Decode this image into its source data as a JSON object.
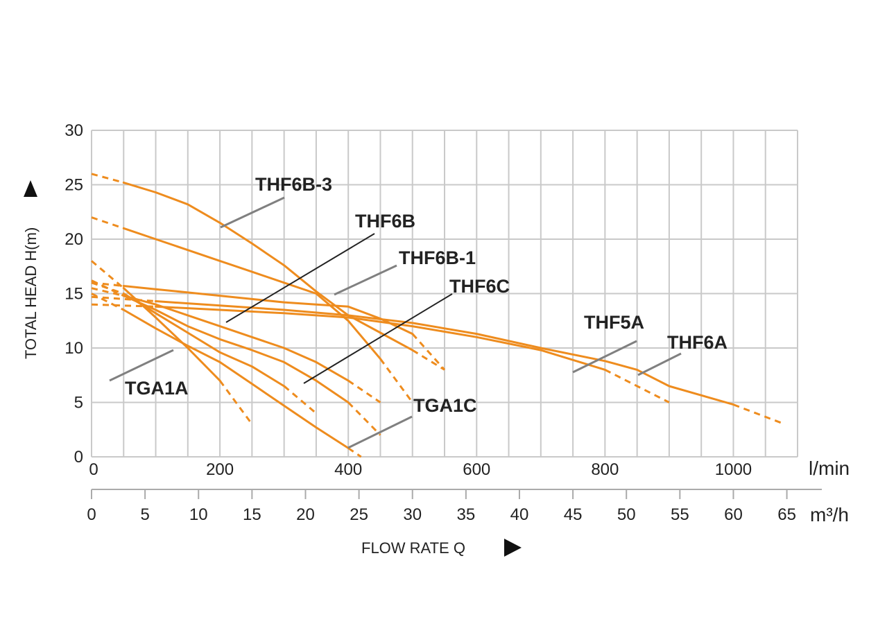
{
  "chart_data": {
    "type": "line",
    "ylabel": "TOTAL HEAD H(m)",
    "xlabel": "FLOW RATE Q",
    "ylim": [
      0,
      30
    ],
    "xlim": [
      0,
      1100
    ],
    "x_unit": "l/min",
    "x2_unit": "m³/h",
    "y_ticks": [
      0,
      5,
      10,
      15,
      20,
      25,
      30
    ],
    "x_ticks": [
      0,
      200,
      400,
      600,
      800,
      1000
    ],
    "x2_ticks": [
      0,
      5,
      10,
      15,
      20,
      25,
      30,
      35,
      40,
      45,
      50,
      55,
      60,
      65
    ],
    "grid": true,
    "series": [
      {
        "name": "THF6B-3",
        "x": [
          0,
          50,
          100,
          150,
          200,
          250,
          300,
          350,
          400,
          450,
          500,
          550
        ],
        "y": [
          26,
          25.2,
          24.3,
          23.2,
          21.5,
          19.6,
          17.6,
          15.2,
          13.0,
          11.4,
          9.8,
          8.0
        ]
      },
      {
        "name": "THF6B",
        "x": [
          0,
          50,
          100,
          150,
          200,
          250,
          300,
          350,
          400,
          450,
          500
        ],
        "y": [
          22,
          21,
          20,
          19,
          18,
          17,
          16,
          15,
          12.5,
          9,
          5
        ]
      },
      {
        "name": "THF6B-1",
        "x": [
          0,
          50,
          100,
          150,
          200,
          250,
          300,
          350,
          400,
          450,
          500,
          550
        ],
        "y": [
          16,
          15.7,
          15.4,
          15.1,
          14.8,
          14.5,
          14.2,
          14.0,
          13.8,
          12.7,
          11.3,
          8.0
        ]
      },
      {
        "name": "THF6C",
        "x": [
          0,
          50,
          100,
          150,
          200,
          250,
          300,
          350,
          400,
          450
        ],
        "y": [
          15.5,
          14.8,
          14.0,
          13.0,
          12.0,
          11.0,
          10.0,
          8.7,
          7.0,
          5.0
        ]
      },
      {
        "name": "TGA1C",
        "x": [
          0,
          50,
          100,
          150,
          200,
          250,
          300,
          350,
          400,
          450
        ],
        "y": [
          16.2,
          14.8,
          13.5,
          12.0,
          10.8,
          9.8,
          8.7,
          7.0,
          5.0,
          2.0
        ]
      },
      {
        "name": "TGA1A",
        "x": [
          0,
          50,
          100,
          150,
          200,
          250,
          300,
          350,
          400,
          420
        ],
        "y": [
          15,
          13.5,
          11.8,
          10.2,
          8.7,
          6.7,
          4.7,
          2.7,
          0.8,
          0
        ]
      },
      {
        "name": "THF5A",
        "x": [
          0,
          100,
          200,
          300,
          400,
          500,
          600,
          700,
          800,
          900
        ],
        "y": [
          14,
          13.8,
          13.5,
          13.2,
          12.8,
          12.0,
          11.0,
          9.8,
          8.0,
          5.0
        ]
      },
      {
        "name": "THF6A",
        "x": [
          0,
          100,
          200,
          300,
          400,
          500,
          600,
          700,
          800,
          850,
          900,
          1000,
          1080
        ],
        "y": [
          14.7,
          14.3,
          13.9,
          13.5,
          13.0,
          12.3,
          11.3,
          10.0,
          8.8,
          8.0,
          6.5,
          4.8,
          3.0
        ]
      },
      {
        "name": "",
        "x": [
          0,
          50,
          100,
          150,
          200,
          250
        ],
        "y": [
          18,
          15.5,
          12.8,
          10.0,
          7.0,
          3.0
        ]
      },
      {
        "name": "",
        "x": [
          0,
          50,
          100,
          150,
          200,
          250,
          300,
          350
        ],
        "y": [
          16,
          15.0,
          13.2,
          11.4,
          9.6,
          8.3,
          6.5,
          4.0
        ]
      }
    ]
  }
}
